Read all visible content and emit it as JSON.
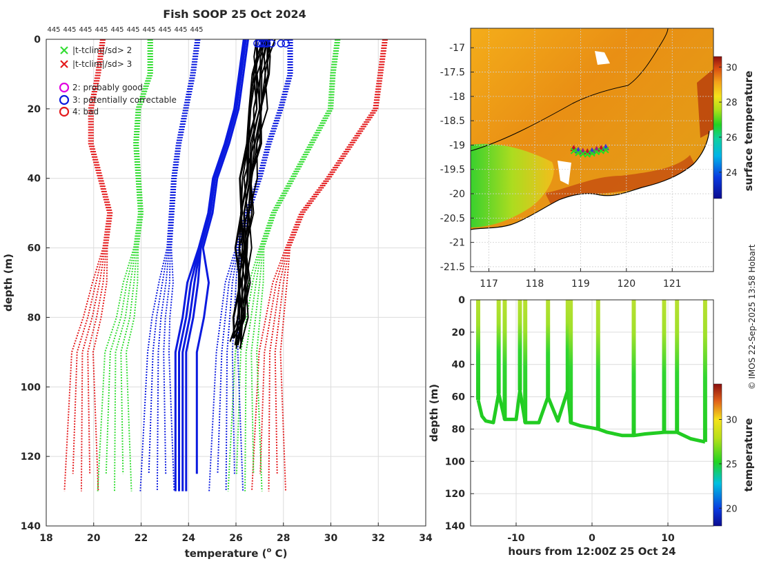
{
  "title": "Fish SOOP 25 Oct 2024",
  "copyright": "© IMOS 22-Sep-2025 13:58 Hobart",
  "colors": {
    "red": "#e41a1c",
    "green": "#33dd33",
    "blue": "#0a1adf",
    "black": "#000000",
    "magenta": "#e000e0"
  },
  "chart_data": [
    {
      "type": "line",
      "name": "profiles",
      "xlabel": "temperature (°C)",
      "xlabel_main": "temperature (",
      "xlabel_sup": "o",
      "xlabel_unit": " C)",
      "ylabel": "depth (m)",
      "xlim": [
        18,
        34
      ],
      "ylim": [
        140,
        0
      ],
      "xticks": [
        "18",
        "20",
        "22",
        "24",
        "26",
        "28",
        "30",
        "32",
        "34"
      ],
      "yticks": [
        "0",
        "20",
        "40",
        "60",
        "80",
        "100",
        "120",
        "140"
      ],
      "top_labels": [
        "445",
        "445",
        "445",
        "445",
        "445",
        "445",
        "445",
        "445",
        "445",
        "445"
      ],
      "legend": [
        {
          "marker": "x",
          "color": "green",
          "label": "|t-tclim|/sd> 2"
        },
        {
          "marker": "x",
          "color": "red",
          "label": "|t-tclim|/sd> 3"
        },
        {
          "marker": "o",
          "color": "magenta",
          "label": "2: probably good"
        },
        {
          "marker": "o",
          "color": "blue",
          "label": "3: potentially correctable"
        },
        {
          "marker": "o",
          "color": "red",
          "label": "4: bad"
        }
      ],
      "clim_profiles": {
        "depth": [
          0,
          10,
          20,
          30,
          40,
          50,
          60,
          70,
          80,
          90,
          125
        ],
        "red_low": [
          20.4,
          20.2,
          19.9,
          19.9,
          20.3,
          20.7,
          20.5,
          20.3,
          20.0,
          19.6,
          19.6
        ],
        "green_low": [
          22.4,
          22.4,
          21.9,
          21.8,
          21.9,
          22.0,
          21.8,
          21.6,
          21.4,
          21.0,
          21.0
        ],
        "blue_low": [
          24.4,
          24.2,
          23.9,
          23.6,
          23.4,
          23.3,
          23.2,
          23.1,
          22.9,
          22.8,
          22.8
        ],
        "blue_high": [
          28.3,
          28.3,
          27.9,
          27.4,
          27.0,
          26.5,
          26.1,
          25.9,
          25.8,
          25.7,
          25.7
        ],
        "green_high": [
          30.3,
          30.1,
          30.0,
          29.2,
          28.4,
          27.6,
          27.1,
          26.9,
          26.7,
          26.5,
          26.5
        ],
        "red_high": [
          32.3,
          32.1,
          31.9,
          30.9,
          29.9,
          28.8,
          28.2,
          27.9,
          27.7,
          27.5,
          27.5
        ]
      },
      "model_profile": {
        "depth": [
          0,
          10,
          20,
          30,
          40,
          50,
          60,
          70,
          80,
          90,
          130
        ],
        "temperature": [
          26.4,
          26.2,
          26.0,
          25.6,
          25.1,
          24.9,
          24.5,
          24.3,
          24.1,
          23.8,
          23.8
        ]
      },
      "observed_profiles": {
        "depth": [
          0,
          5,
          10,
          20,
          30,
          40,
          50,
          60,
          70,
          80,
          88
        ],
        "mean_temperature": [
          27.2,
          27.1,
          27.0,
          26.9,
          26.7,
          26.5,
          26.4,
          26.3,
          26.3,
          26.2,
          26.0
        ]
      },
      "flag3_surface_temps": [
        26.9,
        27.0,
        27.1,
        27.2,
        27.3,
        27.5,
        27.9,
        28.1
      ]
    },
    {
      "type": "heatmap",
      "name": "surface-temperature-map",
      "colorbar_label": "surface temperature",
      "xlim": [
        116.6,
        121.9
      ],
      "ylim": [
        -21.6,
        -16.6
      ],
      "xticks": [
        "117",
        "118",
        "119",
        "120",
        "121"
      ],
      "yticks": [
        "-17",
        "-17.5",
        "-18",
        "-18.5",
        "-19",
        "-19.5",
        "-20",
        "-20.5",
        "-21",
        "-21.5"
      ],
      "cbar_ticks": [
        "30",
        "28",
        "26",
        "24"
      ],
      "cbar_range": [
        22.5,
        30.6
      ],
      "track_lon": [
        118.85,
        118.95,
        119.05,
        119.15,
        119.25,
        119.35,
        119.45,
        119.55
      ],
      "track_lat": [
        -19.08,
        -19.12,
        -19.14,
        -19.15,
        -19.13,
        -19.1,
        -19.08,
        -19.06
      ]
    },
    {
      "type": "scatter",
      "name": "depth-time-section",
      "xlabel": "hours from 12:00Z 25 Oct 24",
      "ylabel": "depth (m)",
      "colorbar_label": "temperature",
      "xlim": [
        -16,
        16
      ],
      "ylim": [
        140,
        0
      ],
      "xticks": [
        "-10",
        "0",
        "10"
      ],
      "yticks": [
        "0",
        "20",
        "40",
        "60",
        "80",
        "100",
        "120",
        "140"
      ],
      "cbar_ticks": [
        "30",
        "25",
        "20"
      ],
      "cbar_range": [
        18,
        34
      ],
      "cast_hours": [
        -15.0,
        -12.3,
        -11.5,
        -9.5,
        -8.8,
        -5.8,
        -3.2,
        -2.8,
        0.8,
        5.5,
        9.5,
        11.2,
        14.9
      ],
      "bottom_track": {
        "hours": [
          -15,
          -14.5,
          -14,
          -13,
          -12.3,
          -11.5,
          -10,
          -9.5,
          -8.8,
          -7,
          -5.8,
          -4.5,
          -3.2,
          -2.8,
          -1.5,
          0.8,
          2,
          4,
          5.5,
          7,
          9.5,
          11.2,
          13,
          14.9
        ],
        "depth": [
          62,
          72,
          75,
          76,
          58,
          74,
          74,
          56,
          76,
          76,
          60,
          75,
          56,
          76,
          78,
          80,
          82,
          84,
          84,
          83,
          82,
          82,
          86,
          88
        ]
      }
    }
  ]
}
